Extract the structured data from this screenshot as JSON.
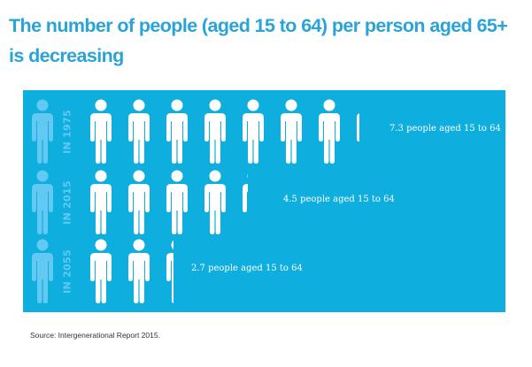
{
  "title": "The number of people (aged 15 to 64) per person aged 65+ is decreasing",
  "colors": {
    "title": "#2aa3d8",
    "panel": "#0eaedf",
    "elder_figure": "#62c9f2",
    "working_figure": "#ffffff"
  },
  "icons": {
    "person": "person-icon"
  },
  "rows": [
    {
      "year_label": "IN 1975",
      "value": 7.3,
      "label": "7.3 people aged 15 to 64"
    },
    {
      "year_label": "IN 2015",
      "value": 4.5,
      "label": "4.5 people aged 15 to 64"
    },
    {
      "year_label": "IN 2055",
      "value": 2.7,
      "label": "2.7 people aged 15 to 64"
    }
  ],
  "source": "Source: Intergenerational  Report  2015."
}
